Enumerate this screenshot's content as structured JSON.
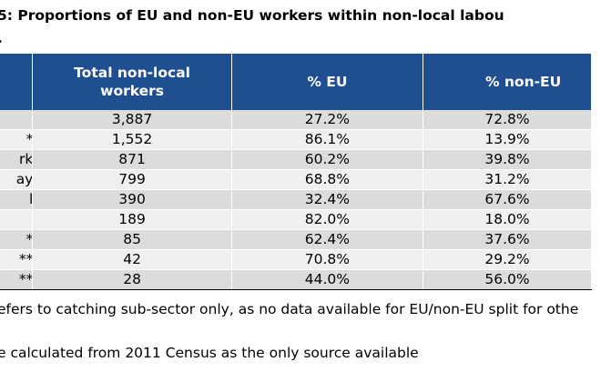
{
  "title": {
    "line1": "5: Proportions of EU and non-EU workers within non-local labou",
    "line2": "."
  },
  "table": {
    "headers": [
      "",
      "Total non-local workers",
      "% EU",
      "% non-EU"
    ],
    "rows": [
      [
        "",
        "3,887",
        "27.2%",
        "72.8%"
      ],
      [
        "*",
        "1,552",
        "86.1%",
        "13.9%"
      ],
      [
        "rk",
        "871",
        "60.2%",
        "39.8%"
      ],
      [
        "ay",
        "799",
        "68.8%",
        "31.2%"
      ],
      [
        "l",
        "390",
        "32.4%",
        "67.6%"
      ],
      [
        "",
        "189",
        "82.0%",
        "18.0%"
      ],
      [
        "*",
        "85",
        "62.4%",
        "37.6%"
      ],
      [
        "**",
        "42",
        "70.8%",
        "29.2%"
      ],
      [
        "**",
        "28",
        "44.0%",
        "56.0%"
      ]
    ]
  },
  "footnotes": [
    "efers to catching sub-sector only, as no data available for EU/non-EU split for othe",
    "e calculated from 2011 Census as the only source available"
  ],
  "colors": {
    "header_bg": "#1f4e91",
    "row_odd": "#dcdcdc",
    "row_even": "#f0f0f0"
  }
}
